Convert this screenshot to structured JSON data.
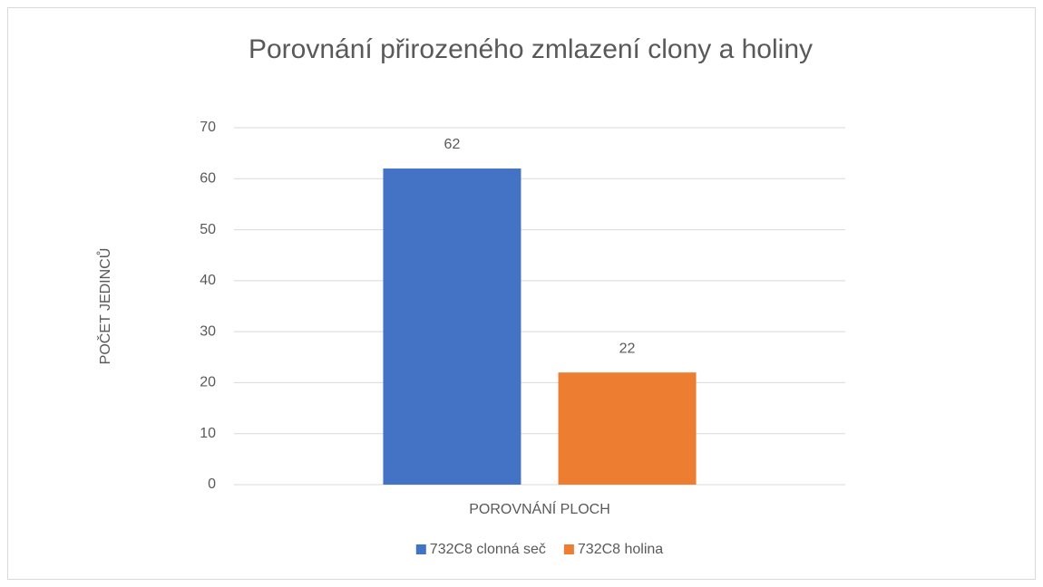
{
  "chart_data": {
    "type": "bar",
    "title": "Porovnání přirozeného zmlazení clony a holiny",
    "x_label": "POROVNÁNÍ PLOCH",
    "y_label": "POČET JEDINCŮ",
    "categories": [
      null
    ],
    "series": [
      {
        "name": "732C8 clonná seč",
        "color": "#4472c4",
        "values": [
          62
        ]
      },
      {
        "name": "732C8 holina",
        "color": "#ed7d31",
        "values": [
          22
        ]
      }
    ],
    "ylim": [
      0,
      70
    ],
    "yticks": [
      0,
      10,
      20,
      30,
      40,
      50,
      60,
      70
    ],
    "grid": true,
    "legend": "bottom"
  }
}
